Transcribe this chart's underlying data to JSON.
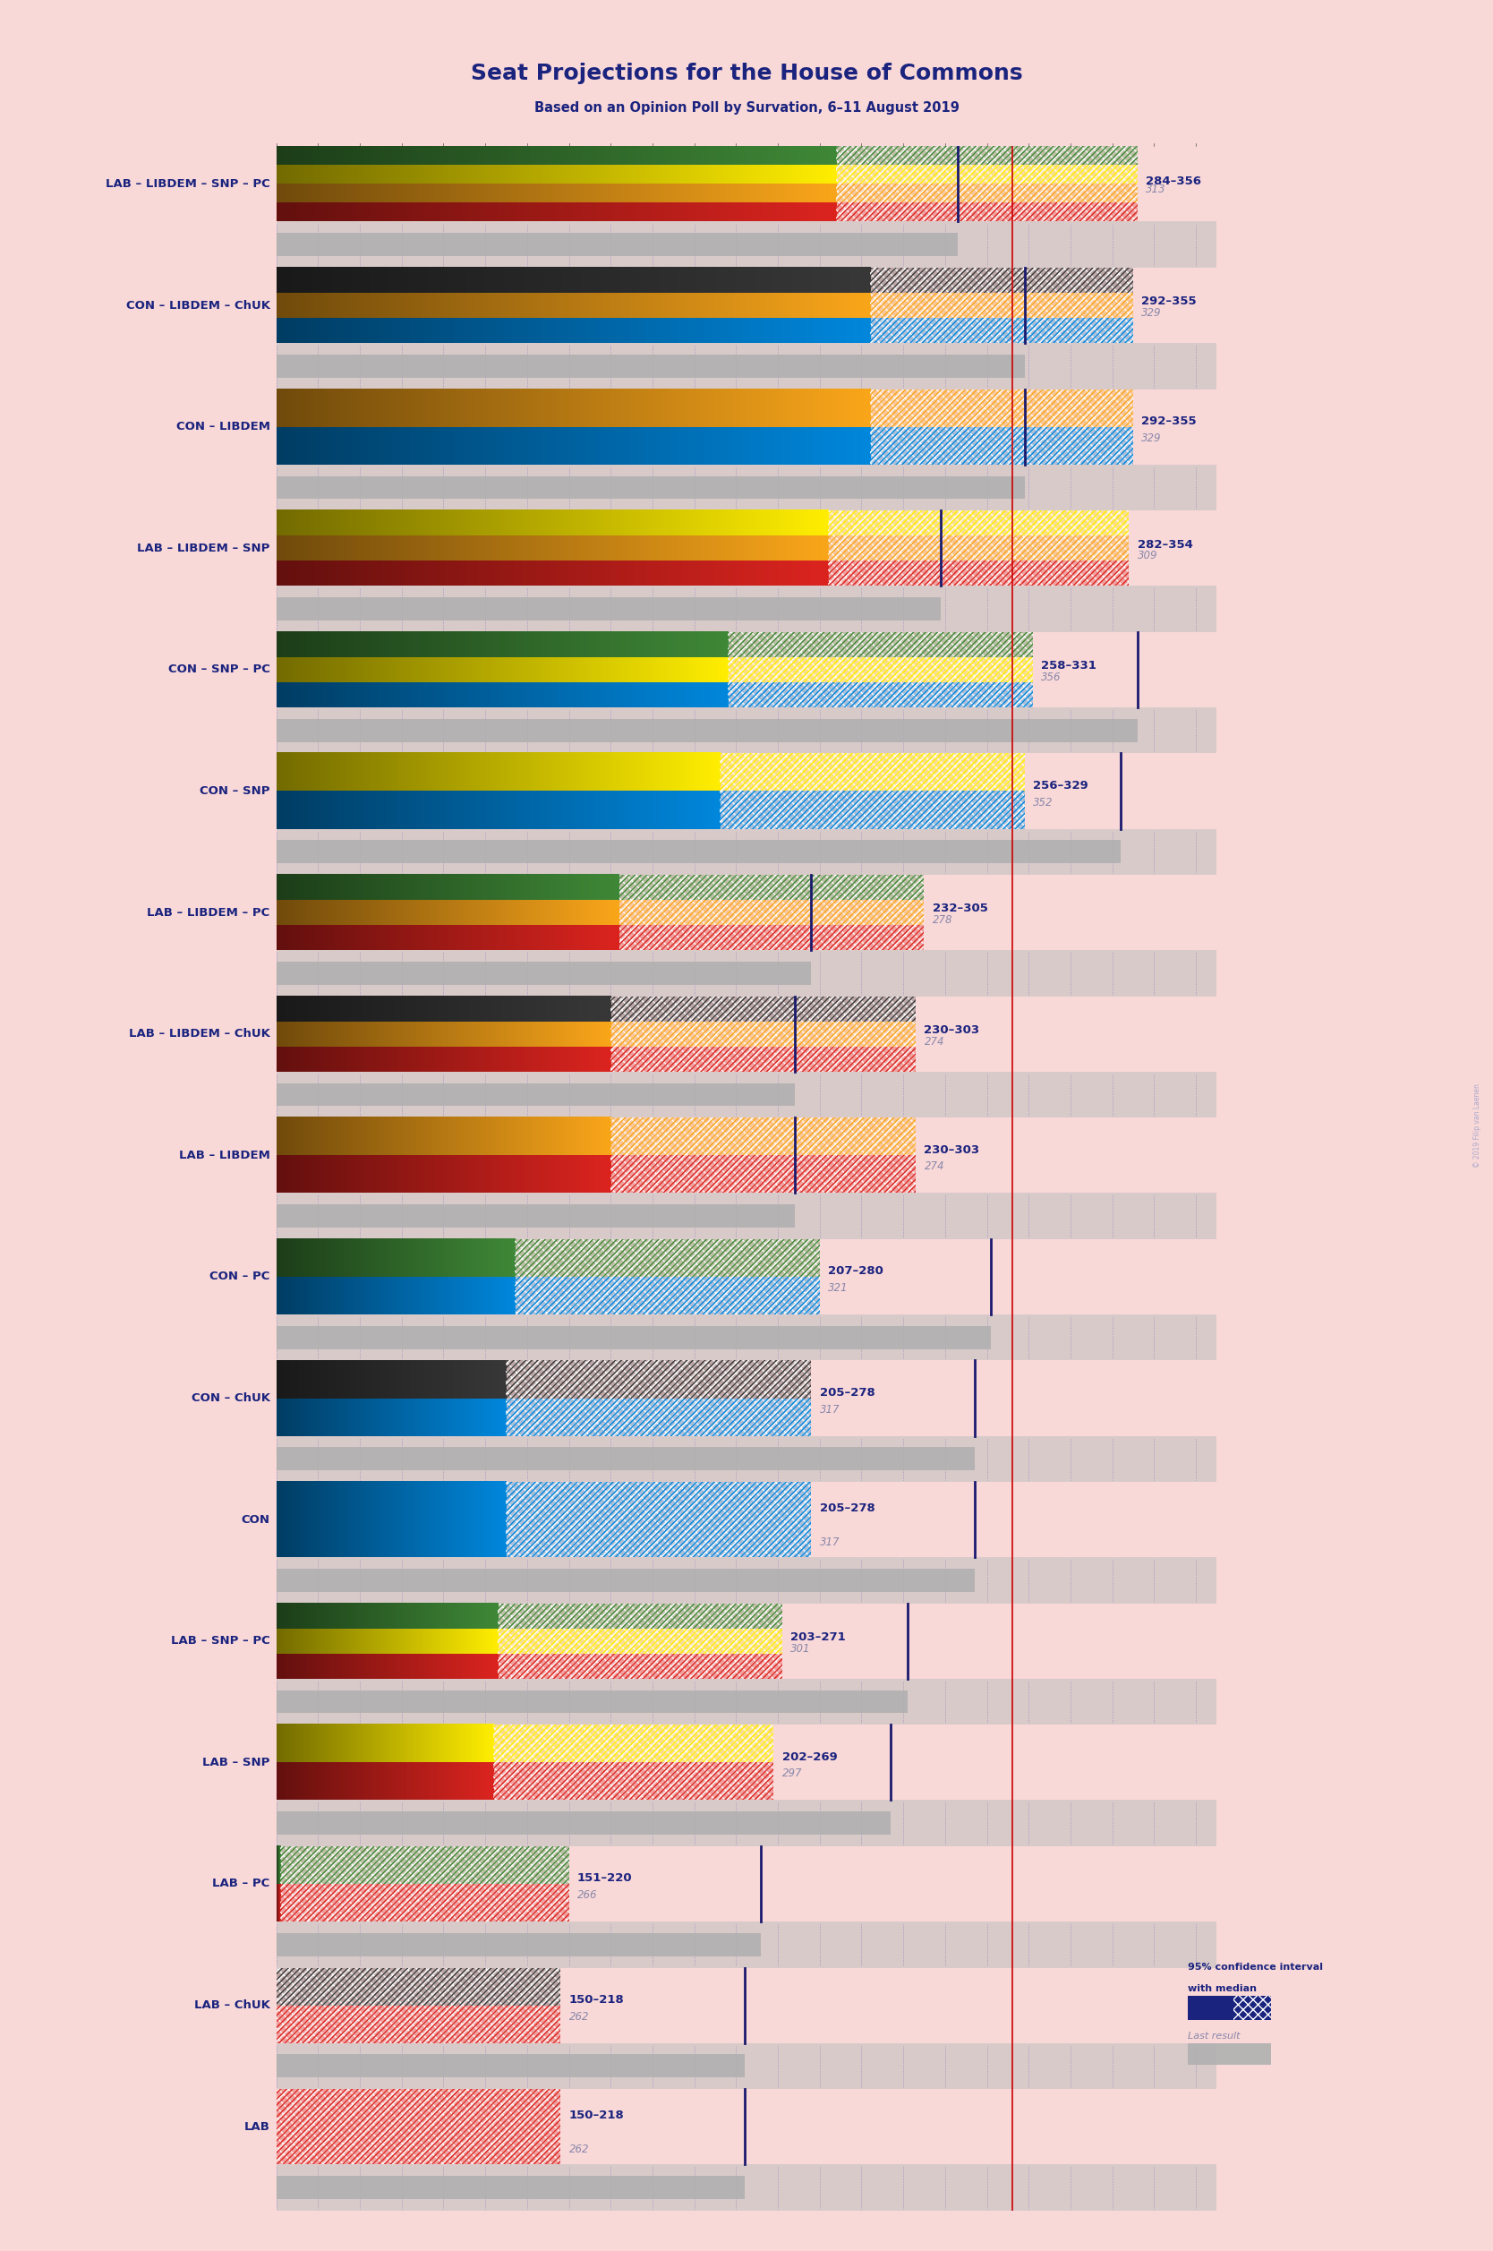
{
  "title": "Seat Projections for the House of Commons",
  "subtitle": "Based on an Opinion Poll by Survation, 6–11 August 2019",
  "background_color": "#f9d8d8",
  "title_color": "#1a237e",
  "subtitle_color": "#1a237e",
  "label_color": "#1a237e",
  "figure_width": 16.68,
  "figure_height": 25.14,
  "seats_min": 150,
  "seats_max": 370,
  "majority": 326,
  "coalitions": [
    {
      "name": "LAB – LIBDEM – SNP – PC",
      "low": 284,
      "high": 356,
      "median": 313,
      "last": 313,
      "colors": [
        "#dc241f",
        "#FAA61A",
        "#FFEE00",
        "#3F8837"
      ]
    },
    {
      "name": "CON – LIBDEM – ChUK",
      "low": 292,
      "high": 355,
      "median": 329,
      "last": 329,
      "colors": [
        "#0087DC",
        "#FAA61A",
        "#383838"
      ]
    },
    {
      "name": "CON – LIBDEM",
      "low": 292,
      "high": 355,
      "median": 329,
      "last": 329,
      "colors": [
        "#0087DC",
        "#FAA61A"
      ]
    },
    {
      "name": "LAB – LIBDEM – SNP",
      "low": 282,
      "high": 354,
      "median": 309,
      "last": 309,
      "colors": [
        "#dc241f",
        "#FAA61A",
        "#FFEE00"
      ]
    },
    {
      "name": "CON – SNP – PC",
      "low": 258,
      "high": 331,
      "median": 356,
      "last": 356,
      "colors": [
        "#0087DC",
        "#FFEE00",
        "#3F8837"
      ]
    },
    {
      "name": "CON – SNP",
      "low": 256,
      "high": 329,
      "median": 352,
      "last": 352,
      "colors": [
        "#0087DC",
        "#FFEE00"
      ]
    },
    {
      "name": "LAB – LIBDEM – PC",
      "low": 232,
      "high": 305,
      "median": 278,
      "last": 278,
      "colors": [
        "#dc241f",
        "#FAA61A",
        "#3F8837"
      ]
    },
    {
      "name": "LAB – LIBDEM – ChUK",
      "low": 230,
      "high": 303,
      "median": 274,
      "last": 274,
      "colors": [
        "#dc241f",
        "#FAA61A",
        "#383838"
      ]
    },
    {
      "name": "LAB – LIBDEM",
      "low": 230,
      "high": 303,
      "median": 274,
      "last": 274,
      "colors": [
        "#dc241f",
        "#FAA61A"
      ]
    },
    {
      "name": "CON – PC",
      "low": 207,
      "high": 280,
      "median": 321,
      "last": 321,
      "colors": [
        "#0087DC",
        "#3F8837"
      ]
    },
    {
      "name": "CON – ChUK",
      "low": 205,
      "high": 278,
      "median": 317,
      "last": 317,
      "colors": [
        "#0087DC",
        "#383838"
      ]
    },
    {
      "name": "CON",
      "low": 205,
      "high": 278,
      "median": 317,
      "last": 317,
      "colors": [
        "#0087DC"
      ]
    },
    {
      "name": "LAB – SNP – PC",
      "low": 203,
      "high": 271,
      "median": 301,
      "last": 301,
      "colors": [
        "#dc241f",
        "#FFEE00",
        "#3F8837"
      ]
    },
    {
      "name": "LAB – SNP",
      "low": 202,
      "high": 269,
      "median": 297,
      "last": 297,
      "colors": [
        "#dc241f",
        "#FFEE00"
      ]
    },
    {
      "name": "LAB – PC",
      "low": 151,
      "high": 220,
      "median": 266,
      "last": 266,
      "colors": [
        "#dc241f",
        "#3F8837"
      ]
    },
    {
      "name": "LAB – ChUK",
      "low": 150,
      "high": 218,
      "median": 262,
      "last": 262,
      "colors": [
        "#dc241f",
        "#383838"
      ]
    },
    {
      "name": "LAB",
      "low": 150,
      "high": 218,
      "median": 262,
      "last": 262,
      "colors": [
        "#dc241f"
      ]
    }
  ]
}
